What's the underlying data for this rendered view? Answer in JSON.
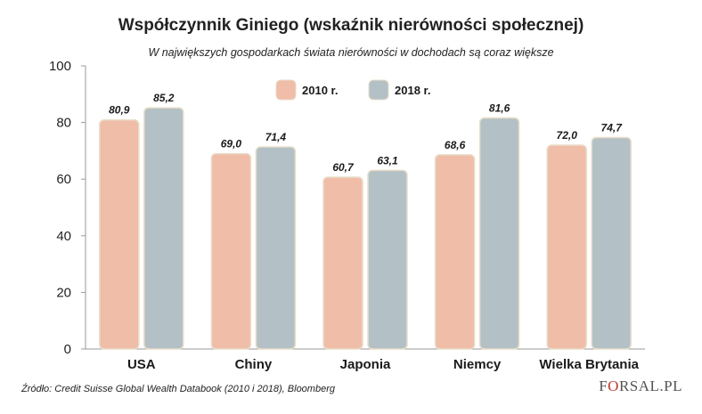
{
  "title": "Współczynnik Giniego (wskaźnik nierówności społecznej)",
  "subtitle": "W największych gospodarkach świata nierówności w dochodach są coraz większe",
  "source": "Źródło: Credit Suisse Global Wealth Databook (2010 i 2018), Bloomberg",
  "logo": {
    "left": "F",
    "mark": "O",
    "right": "RSAL.PL"
  },
  "colors": {
    "series_2010": "#f0bda8",
    "series_2018": "#b3c1c6",
    "axis": "#9a9a9a",
    "grid": "#e6e6e6"
  },
  "chart_data": {
    "type": "bar",
    "categories": [
      "USA",
      "Chiny",
      "Japonia",
      "Niemcy",
      "Wielka Brytania"
    ],
    "series": [
      {
        "name": "2010 r.",
        "values": [
          80.9,
          69.0,
          60.7,
          68.6,
          72.0
        ],
        "labels": [
          "80,9",
          "69,0",
          "60,7",
          "68,6",
          "72,0"
        ]
      },
      {
        "name": "2018 r.",
        "values": [
          85.2,
          71.4,
          63.1,
          81.6,
          74.7
        ],
        "labels": [
          "85,2",
          "71,4",
          "63,1",
          "81,6",
          "74,7"
        ]
      }
    ],
    "ylim": [
      0,
      100
    ],
    "yticks": [
      0,
      20,
      40,
      60,
      80,
      100
    ],
    "grid": false,
    "legend_position": "top-center"
  }
}
